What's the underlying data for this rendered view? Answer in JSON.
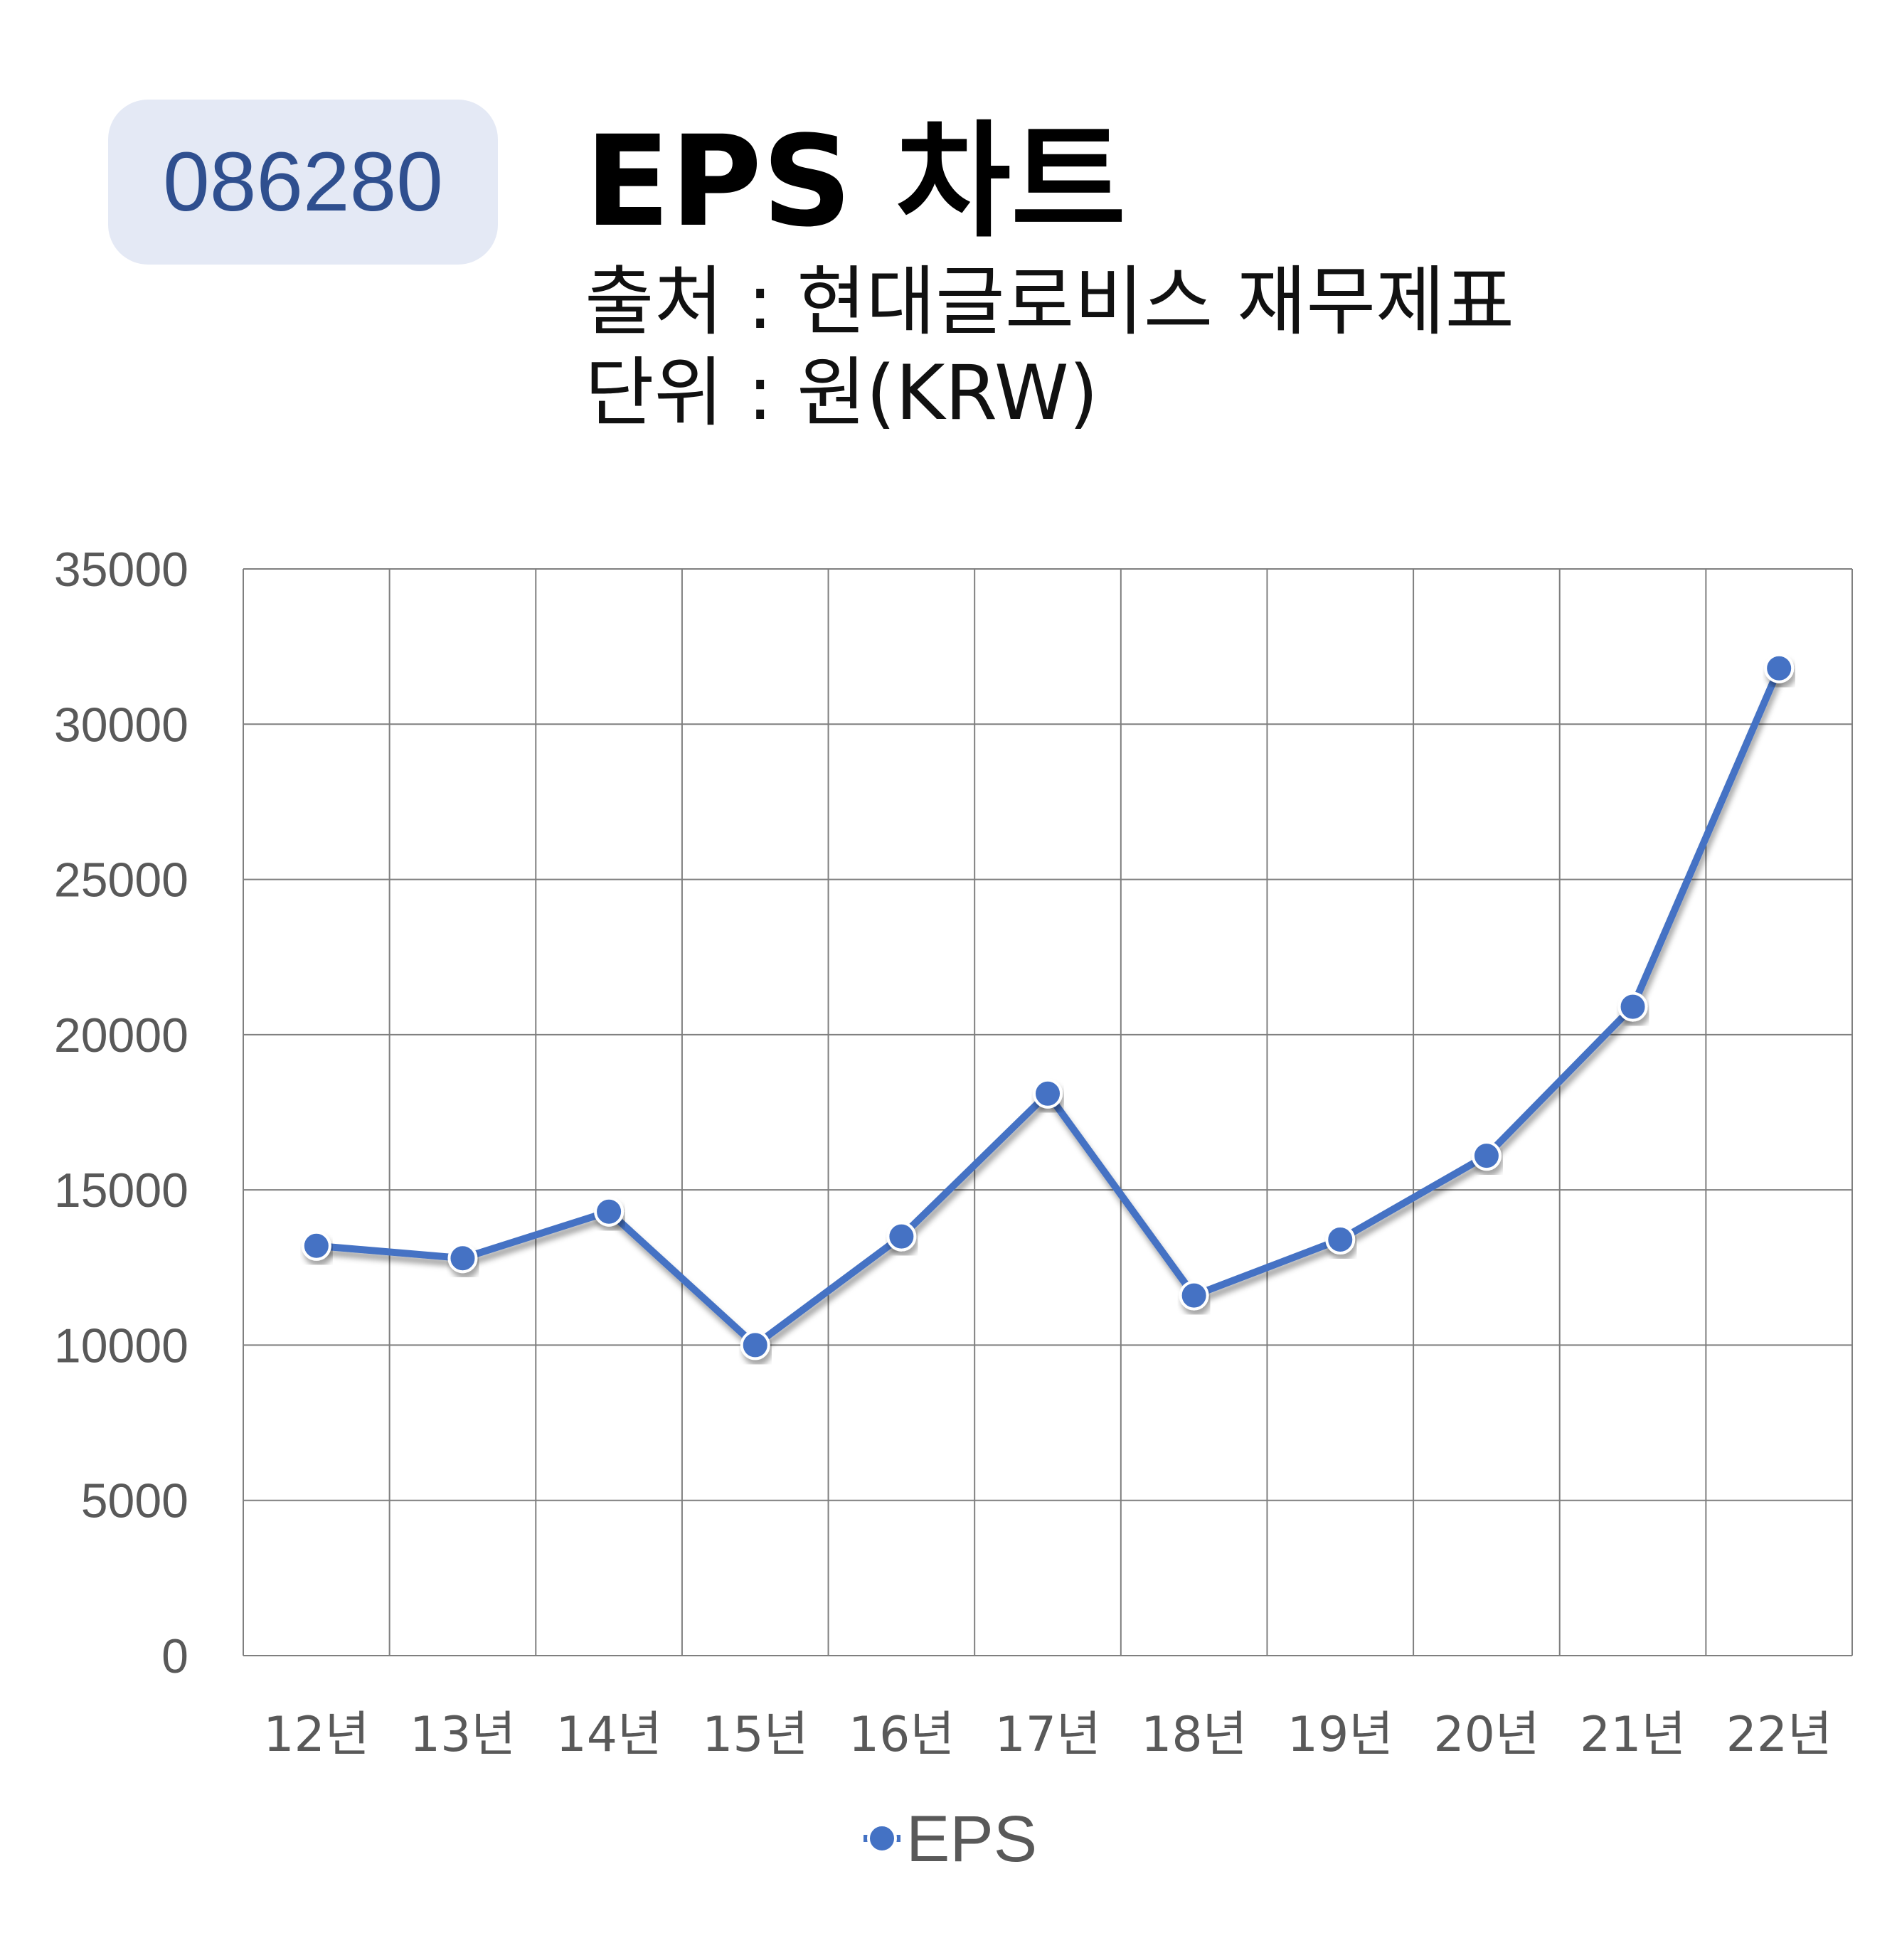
{
  "badge": {
    "code": "086280"
  },
  "header": {
    "title": "EPS 차트",
    "source": "출처 : 현대글로비스 재무제표",
    "unit": "단위 : 원(KRW)"
  },
  "colors": {
    "line": "#4472c4",
    "grid": "#7f7f7f",
    "axis_text": "#595959",
    "badge_bg": "#e4e9f5",
    "badge_text": "#2f4f8f"
  },
  "chart_data": {
    "type": "line",
    "categories": [
      "12년",
      "13년",
      "14년",
      "15년",
      "16년",
      "17년",
      "18년",
      "19년",
      "20년",
      "21년",
      "22년"
    ],
    "series": [
      {
        "name": "EPS",
        "values": [
          13200,
          12800,
          14300,
          10000,
          13500,
          18100,
          11600,
          13400,
          16100,
          20900,
          31800
        ]
      }
    ],
    "ylim": [
      0,
      35000
    ],
    "yticks": [
      0,
      5000,
      10000,
      15000,
      20000,
      25000,
      30000,
      35000
    ],
    "grid": true,
    "legend": "bottom",
    "xlabel": "",
    "ylabel": ""
  }
}
